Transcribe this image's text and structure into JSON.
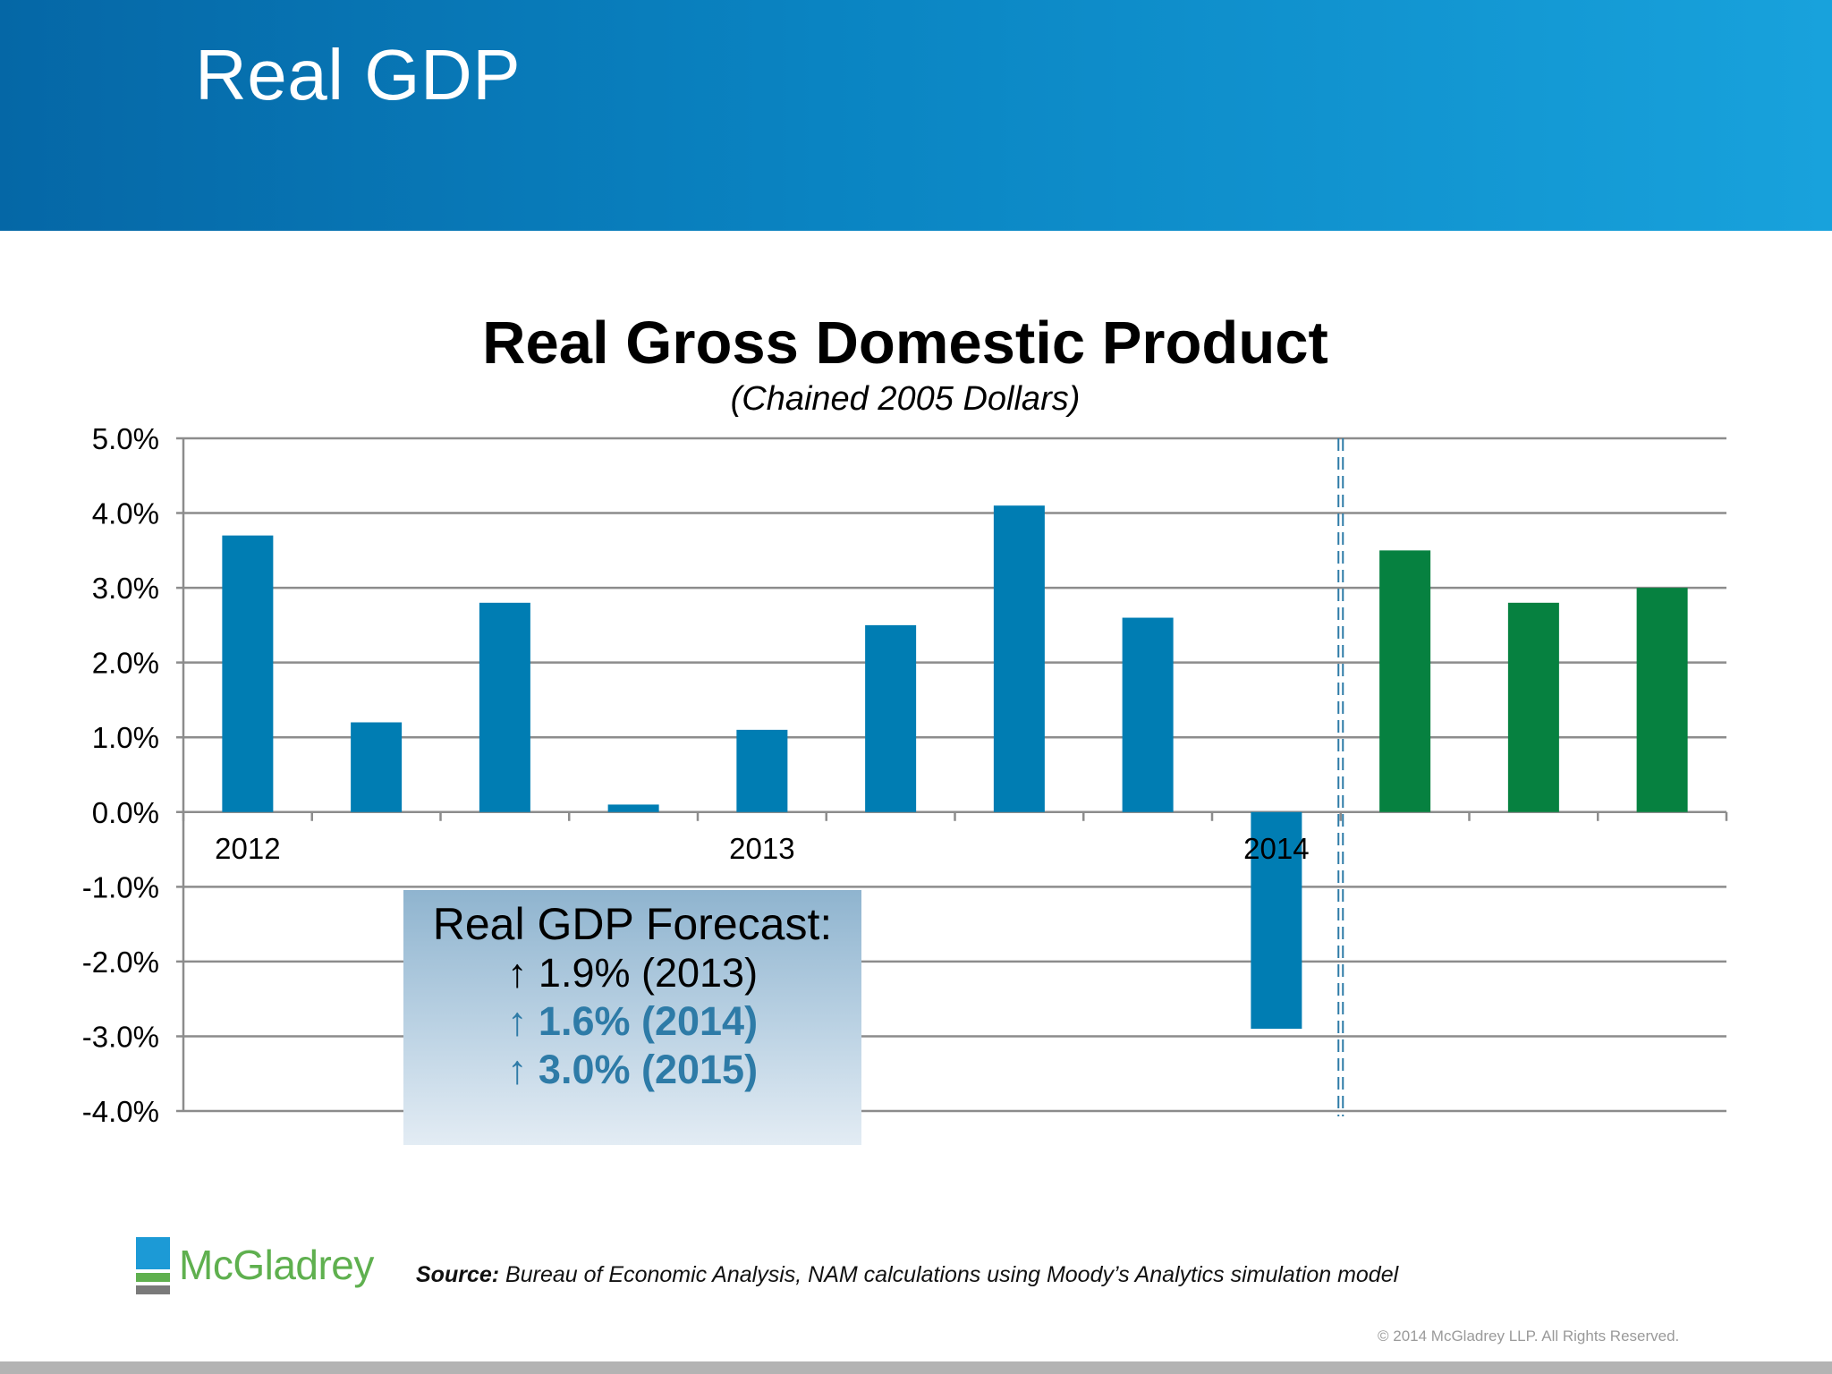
{
  "slide": {
    "title": "Real GDP"
  },
  "forecast": {
    "title": "Real GDP Forecast:",
    "lines": [
      {
        "text": "↑ 1.9% (2013)",
        "highlight": false
      },
      {
        "text": "↑ 1.6% (2014)",
        "highlight": true
      },
      {
        "text": "↑ 3.0% (2015)",
        "highlight": true
      }
    ]
  },
  "footer": {
    "logo_text": "McGladrey",
    "source_label": "Source:",
    "source_text": " Bureau of Economic Analysis, NAM calculations using Moody’s Analytics simulation model",
    "copyright": "© 2014 McGladrey LLP. All Rights Reserved."
  },
  "colors": {
    "header_blue": "#0a84c2",
    "actual_bar": "#007db3",
    "forecast_bar": "#068140",
    "forecast_highlight": "#2e7ba7",
    "logo_green": "#5fb04f",
    "logo_blue": "#1c9ad6"
  },
  "chart_data": {
    "type": "bar",
    "title": "Real Gross Domestic Product",
    "subtitle": "(Chained 2005 Dollars)",
    "xlabel": "",
    "ylabel": "",
    "ylim": [
      -4.0,
      5.0
    ],
    "yticks": [
      "-4.0%",
      "-3.0%",
      "-2.0%",
      "-1.0%",
      "0.0%",
      "1.0%",
      "2.0%",
      "3.0%",
      "4.0%",
      "5.0%"
    ],
    "x_tick_labels": [
      "2012",
      "",
      "",
      "",
      "2013",
      "",
      "",
      "",
      "2014",
      "",
      "",
      ""
    ],
    "values": [
      3.7,
      1.2,
      2.8,
      0.1,
      1.1,
      2.5,
      4.1,
      2.6,
      -2.9,
      3.5,
      2.8,
      3.0
    ],
    "is_forecast": [
      false,
      false,
      false,
      false,
      false,
      false,
      false,
      false,
      false,
      true,
      true,
      true
    ],
    "forecast_divider": "dashed line between 2014 Q1 and forecast bars",
    "grid": true
  }
}
